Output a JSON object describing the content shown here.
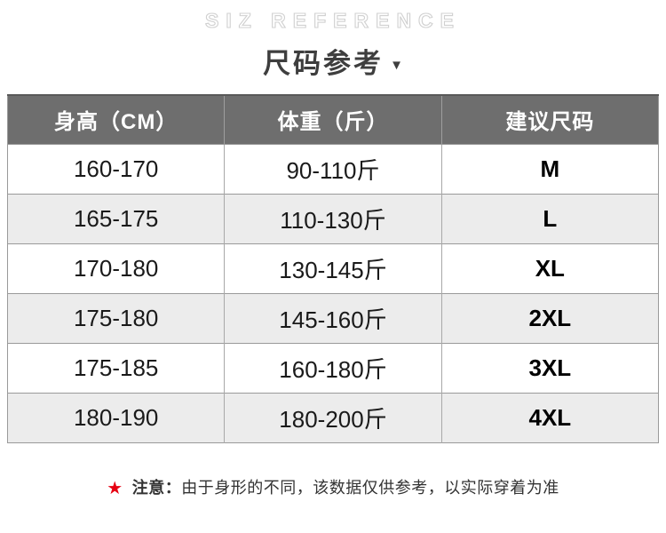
{
  "title": {
    "en": "SIZ REFERENCE",
    "cn": "尺码参考",
    "dropdown_icon": "▼"
  },
  "table": {
    "columns": [
      "身高（CM）",
      "体重（斤）",
      "建议尺码"
    ],
    "rows": [
      {
        "height": "160-170",
        "weight": "90-110斤",
        "size": "M"
      },
      {
        "height": "165-175",
        "weight": "110-130斤",
        "size": "L"
      },
      {
        "height": "170-180",
        "weight": "130-145斤",
        "size": "XL"
      },
      {
        "height": "175-180",
        "weight": "145-160斤",
        "size": "2XL"
      },
      {
        "height": "175-185",
        "weight": "160-180斤",
        "size": "3XL"
      },
      {
        "height": "180-190",
        "weight": "180-200斤",
        "size": "4XL"
      }
    ]
  },
  "note": {
    "star_icon": "★",
    "label": "注意：",
    "text": "由于身形的不同，该数据仅供参考，以实际穿着为准"
  },
  "colors": {
    "header_bg": "#6e6e6e",
    "header_text": "#ffffff",
    "row_alt_bg": "#ececec",
    "border": "#9a9a9a",
    "accent_red": "#e60012",
    "title_text": "#3e3e3e",
    "en_outline": "#d0d0d0"
  }
}
